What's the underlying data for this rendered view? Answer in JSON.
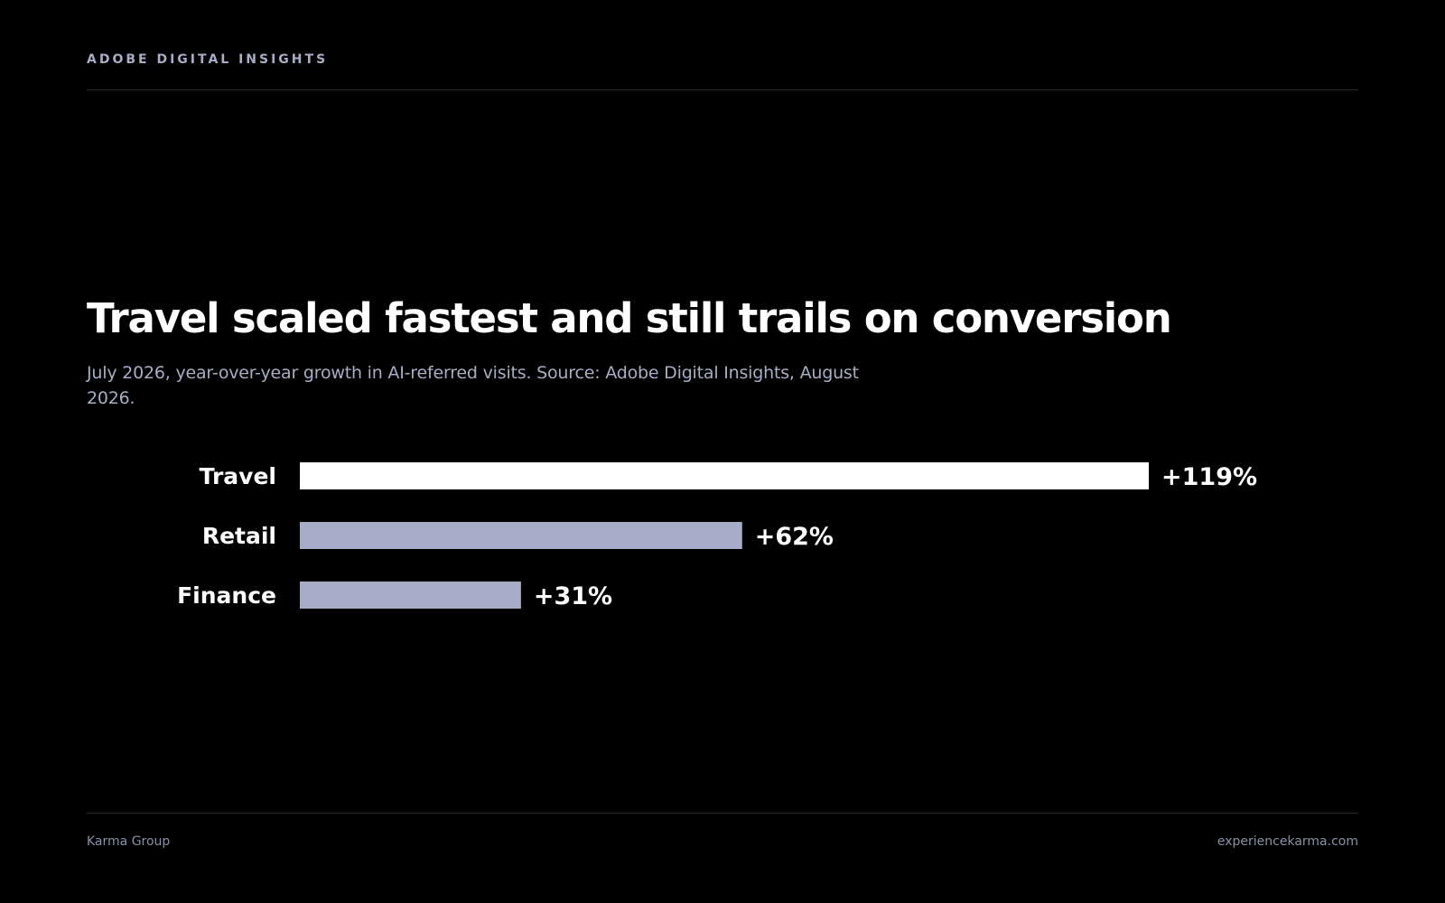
{
  "header": {
    "eyebrow": "ADOBE DIGITAL INSIGHTS"
  },
  "title": "Travel scaled fastest and still trails on conversion",
  "subtitle": "July 2026, year-over-year growth in AI-referred visits. Source: Adobe Digital Insights, August 2026.",
  "footer": {
    "left": "Karma Group",
    "right": "experiencekarma.com"
  },
  "colors": {
    "background": "#000000",
    "highlight_bar": "#ffffff",
    "muted_bar": "#a7adc6",
    "muted_text": "#a7adc6"
  },
  "chart_data": {
    "type": "bar",
    "orientation": "horizontal",
    "categories": [
      "Travel",
      "Retail",
      "Finance"
    ],
    "values": [
      119,
      62,
      31
    ],
    "data_labels": [
      "+119%",
      "+62%",
      "+31%"
    ],
    "highlighted": [
      "Travel"
    ],
    "xlim": [
      0,
      119
    ],
    "grid": false,
    "legend": "none"
  }
}
